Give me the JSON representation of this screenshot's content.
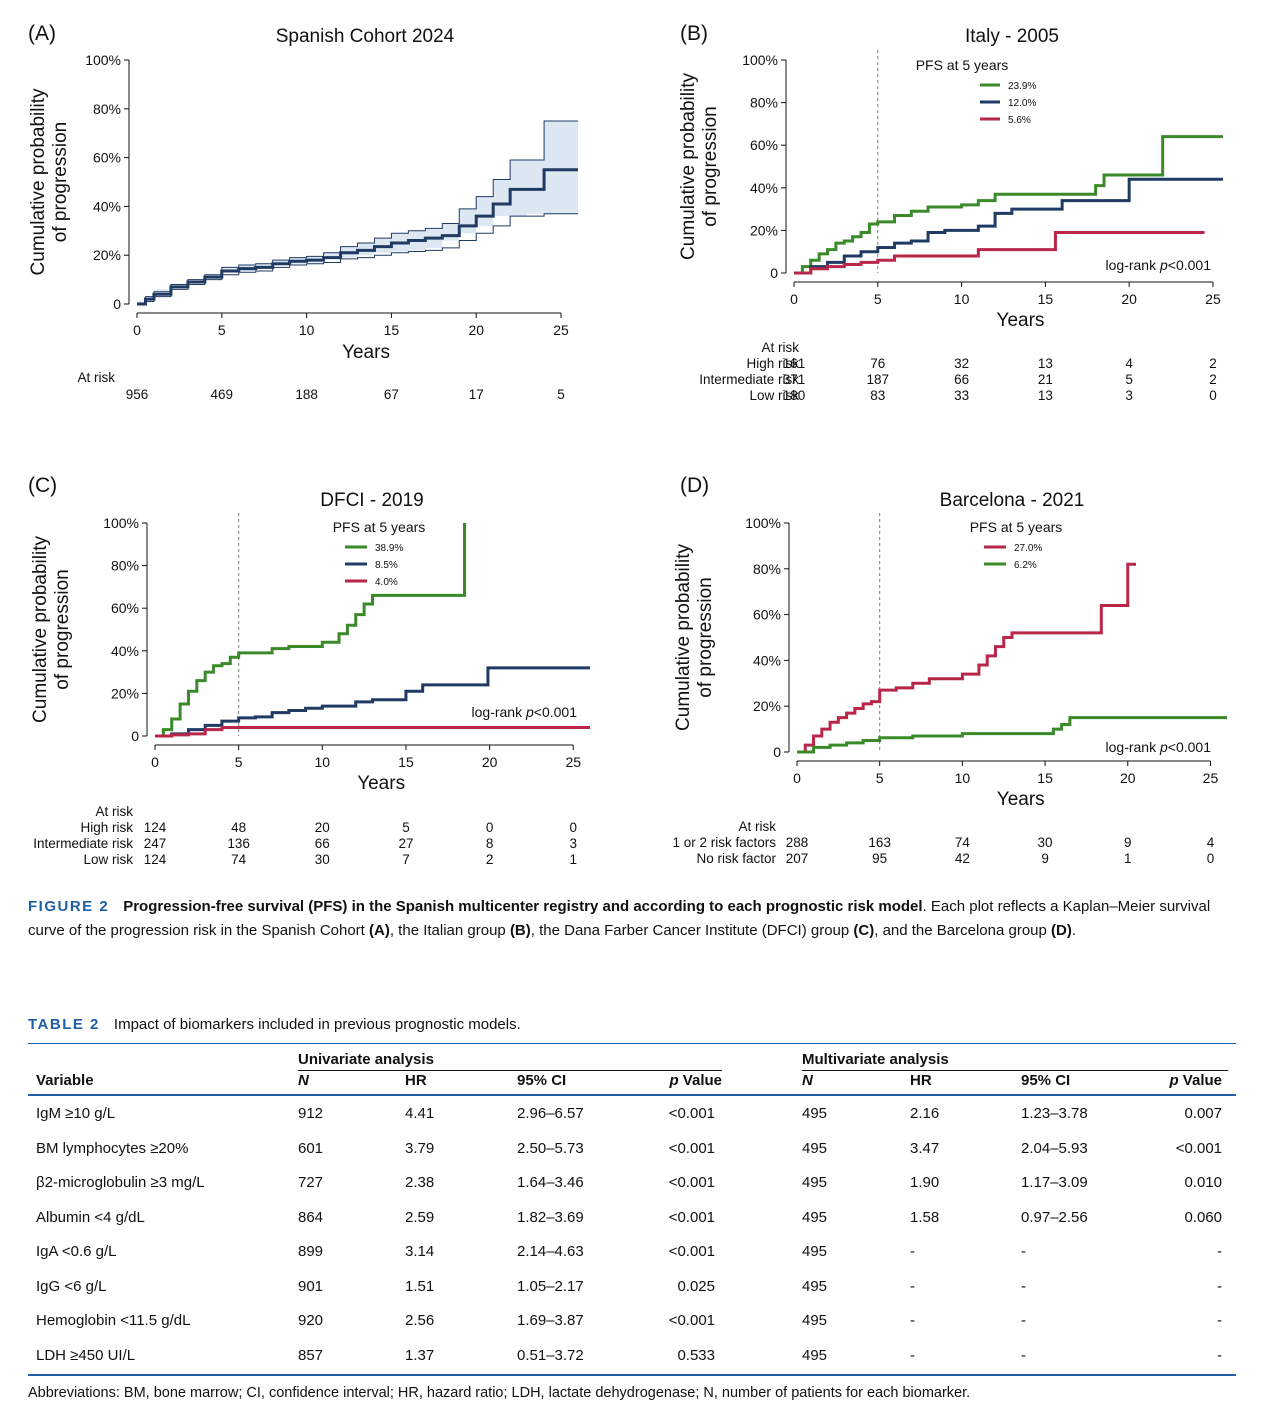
{
  "panels": [
    {
      "label": "(A)",
      "title": "Spanish Cohort 2024",
      "ylabel_lines": [
        "Cumulative probability",
        "of progression"
      ],
      "xlabel": "Years",
      "yticks": [
        "0",
        "20%",
        "40%",
        "60%",
        "80%",
        "100%"
      ],
      "xticks": [
        "0",
        "5",
        "10",
        "15",
        "20",
        "25"
      ],
      "at_risk_title": "At risk",
      "at_risk_rows": [
        {
          "label": "",
          "values": [
            "956",
            "469",
            "188",
            "67",
            "17",
            "5"
          ]
        }
      ]
    },
    {
      "label": "(B)",
      "title": "Italy - 2005",
      "ylabel_lines": [
        "Cumulative probability",
        "of progression"
      ],
      "xlabel": "Years",
      "yticks": [
        "0",
        "20%",
        "40%",
        "60%",
        "80%",
        "100%"
      ],
      "xticks": [
        "0",
        "5",
        "10",
        "15",
        "20",
        "25"
      ],
      "legend_title": "PFS at 5 years",
      "legend": [
        "23.9%",
        "12.0%",
        "5.6%"
      ],
      "logrank": "log-rank ",
      "logrank_p": "p",
      "logrank_val": "<0.001",
      "at_risk_title": "At risk",
      "at_risk_rows": [
        {
          "label": "High risk",
          "values": [
            "161",
            "76",
            "32",
            "13",
            "4",
            "2"
          ]
        },
        {
          "label": "Intermediate risk",
          "values": [
            "371",
            "187",
            "66",
            "21",
            "5",
            "2"
          ]
        },
        {
          "label": "Low risk",
          "values": [
            "180",
            "83",
            "33",
            "13",
            "3",
            "0"
          ]
        }
      ]
    },
    {
      "label": "(C)",
      "title": "DFCI - 2019",
      "ylabel_lines": [
        "Cumulative probability",
        "of progression"
      ],
      "xlabel": "Years",
      "yticks": [
        "0",
        "20%",
        "40%",
        "60%",
        "80%",
        "100%"
      ],
      "xticks": [
        "0",
        "5",
        "10",
        "15",
        "20",
        "25"
      ],
      "legend_title": "PFS at 5 years",
      "legend": [
        "38.9%",
        "8.5%",
        "4.0%"
      ],
      "logrank": "log-rank ",
      "logrank_p": "p",
      "logrank_val": "<0.001",
      "at_risk_title": "At risk",
      "at_risk_rows": [
        {
          "label": "High risk",
          "values": [
            "124",
            "48",
            "20",
            "5",
            "0",
            "0"
          ]
        },
        {
          "label": "Intermediate risk",
          "values": [
            "247",
            "136",
            "66",
            "27",
            "8",
            "3"
          ]
        },
        {
          "label": "Low risk",
          "values": [
            "124",
            "74",
            "30",
            "7",
            "2",
            "1"
          ]
        }
      ]
    },
    {
      "label": "(D)",
      "title": "Barcelona - 2021",
      "ylabel_lines": [
        "Cumulative probability",
        "of progression"
      ],
      "xlabel": "Years",
      "yticks": [
        "0",
        "20%",
        "40%",
        "60%",
        "80%",
        "100%"
      ],
      "xticks": [
        "0",
        "5",
        "10",
        "15",
        "20",
        "25"
      ],
      "legend_title": "PFS at 5 years",
      "legend": [
        "27.0%",
        "6.2%"
      ],
      "logrank": "log-rank ",
      "logrank_p": "p",
      "logrank_val": "<0.001",
      "at_risk_title": "At risk",
      "at_risk_rows": [
        {
          "label": "1 or 2 risk factors",
          "values": [
            "288",
            "163",
            "74",
            "30",
            "9",
            "4"
          ]
        },
        {
          "label": "No risk factor",
          "values": [
            "207",
            "95",
            "42",
            "9",
            "1",
            "0"
          ]
        }
      ]
    }
  ],
  "colors": {
    "green": "#3a8a2a",
    "navy": "#1f3a63",
    "red": "#b8264a",
    "band": "#dce7f2",
    "accent": "#1f5fa6"
  },
  "chart_data": [
    {
      "type": "line",
      "title": "Spanish Cohort 2024",
      "xlabel": "Years",
      "ylabel": "Cumulative probability of progression",
      "xlim": [
        0,
        26
      ],
      "ylim": [
        0,
        1
      ],
      "series": [
        {
          "x": [
            0,
            0.5,
            1,
            2,
            3,
            4,
            5,
            6,
            7,
            8,
            9,
            10,
            11,
            12,
            13,
            14,
            15,
            16,
            17,
            18,
            19,
            20,
            21,
            22,
            23,
            24,
            25,
            26
          ],
          "y": [
            0,
            0.02,
            0.04,
            0.07,
            0.09,
            0.11,
            0.135,
            0.145,
            0.15,
            0.165,
            0.175,
            0.18,
            0.19,
            0.21,
            0.22,
            0.235,
            0.25,
            0.26,
            0.27,
            0.28,
            0.32,
            0.36,
            0.41,
            0.47,
            0.47,
            0.55,
            0.55,
            0.55
          ],
          "lower": [
            0,
            0.01,
            0.03,
            0.06,
            0.08,
            0.1,
            0.12,
            0.13,
            0.135,
            0.15,
            0.16,
            0.165,
            0.17,
            0.185,
            0.19,
            0.2,
            0.21,
            0.215,
            0.22,
            0.23,
            0.26,
            0.29,
            0.32,
            0.36,
            0.36,
            0.37,
            0.37,
            0.37
          ],
          "upper": [
            0,
            0.03,
            0.05,
            0.08,
            0.1,
            0.12,
            0.15,
            0.16,
            0.165,
            0.18,
            0.19,
            0.195,
            0.21,
            0.235,
            0.25,
            0.27,
            0.29,
            0.3,
            0.31,
            0.33,
            0.39,
            0.44,
            0.51,
            0.59,
            0.59,
            0.75,
            0.75,
            0.75
          ]
        }
      ]
    },
    {
      "type": "line",
      "title": "Italy - 2005",
      "xlabel": "Years",
      "ylabel": "Cumulative probability of progression",
      "xlim": [
        0,
        25
      ],
      "ylim": [
        0,
        1
      ],
      "vline": 5,
      "series": [
        {
          "legend": "23.9%",
          "color": "green",
          "x": [
            0,
            0.5,
            1,
            1.5,
            2,
            2.5,
            3,
            3.5,
            4,
            4.5,
            5,
            6,
            7,
            8,
            9,
            10,
            11,
            12,
            13,
            14,
            15,
            16,
            17,
            18,
            18.5,
            20,
            21,
            22,
            23,
            24,
            25.6
          ],
          "y": [
            0,
            0.03,
            0.06,
            0.09,
            0.11,
            0.14,
            0.15,
            0.17,
            0.19,
            0.23,
            0.24,
            0.27,
            0.29,
            0.31,
            0.31,
            0.32,
            0.34,
            0.37,
            0.37,
            0.37,
            0.37,
            0.37,
            0.37,
            0.41,
            0.46,
            0.46,
            0.46,
            0.64,
            0.64,
            0.64,
            0.64
          ]
        },
        {
          "legend": "12.0%",
          "color": "navy",
          "x": [
            0,
            1,
            2,
            3,
            4,
            5,
            6,
            7,
            8,
            9,
            10,
            11,
            12,
            13,
            14,
            15,
            16,
            17,
            18,
            19,
            20,
            21,
            22,
            23,
            24,
            25.6
          ],
          "y": [
            0,
            0.03,
            0.05,
            0.08,
            0.1,
            0.12,
            0.14,
            0.15,
            0.19,
            0.2,
            0.2,
            0.22,
            0.28,
            0.3,
            0.3,
            0.3,
            0.34,
            0.34,
            0.34,
            0.34,
            0.44,
            0.44,
            0.44,
            0.44,
            0.44,
            0.44
          ]
        },
        {
          "legend": "5.6%",
          "color": "red",
          "x": [
            0,
            1,
            2,
            3,
            4,
            5,
            6,
            7,
            8,
            9,
            10,
            11,
            12,
            13,
            14,
            15,
            15.6,
            17,
            20,
            22,
            24.5
          ],
          "y": [
            0,
            0.02,
            0.03,
            0.04,
            0.05,
            0.06,
            0.08,
            0.08,
            0.08,
            0.08,
            0.08,
            0.11,
            0.11,
            0.11,
            0.11,
            0.11,
            0.19,
            0.19,
            0.19,
            0.19,
            0.19
          ]
        }
      ]
    },
    {
      "type": "line",
      "title": "DFCI - 2019",
      "xlabel": "Years",
      "ylabel": "Cumulative probability of progression",
      "xlim": [
        0,
        26
      ],
      "ylim": [
        0,
        1
      ],
      "vline": 5,
      "series": [
        {
          "legend": "38.9%",
          "color": "green",
          "x": [
            0,
            0.5,
            1,
            1.5,
            2,
            2.5,
            3,
            3.5,
            4,
            4.5,
            5,
            6,
            7,
            8,
            9,
            10,
            11,
            11.5,
            12,
            12.5,
            13,
            14,
            15,
            16,
            17,
            18,
            18.5,
            18.5
          ],
          "y": [
            0,
            0.03,
            0.08,
            0.15,
            0.21,
            0.26,
            0.3,
            0.33,
            0.34,
            0.37,
            0.39,
            0.39,
            0.41,
            0.42,
            0.42,
            0.44,
            0.48,
            0.52,
            0.57,
            0.62,
            0.66,
            0.66,
            0.66,
            0.66,
            0.66,
            0.66,
            0.66,
            1.0
          ]
        },
        {
          "legend": "8.5%",
          "color": "navy",
          "x": [
            0,
            1,
            2,
            3,
            4,
            5,
            6,
            7,
            8,
            9,
            10,
            11,
            12,
            13,
            14,
            15,
            16,
            17,
            18,
            19,
            19.9,
            21,
            23,
            26
          ],
          "y": [
            0,
            0.01,
            0.03,
            0.05,
            0.07,
            0.085,
            0.09,
            0.11,
            0.12,
            0.13,
            0.14,
            0.14,
            0.16,
            0.17,
            0.17,
            0.21,
            0.24,
            0.24,
            0.24,
            0.24,
            0.32,
            0.32,
            0.32,
            0.32
          ]
        },
        {
          "legend": "4.0%",
          "color": "red",
          "x": [
            0,
            1,
            2,
            3,
            4,
            5,
            10,
            15,
            20,
            26
          ],
          "y": [
            0,
            0.005,
            0.01,
            0.03,
            0.04,
            0.04,
            0.04,
            0.04,
            0.04,
            0.04
          ]
        }
      ]
    },
    {
      "type": "line",
      "title": "Barcelona - 2021",
      "xlabel": "Years",
      "ylabel": "Cumulative probability of progression",
      "xlim": [
        0,
        26
      ],
      "ylim": [
        0,
        1
      ],
      "vline": 5,
      "series": [
        {
          "legend": "27.0%",
          "color": "red",
          "x": [
            0,
            0.5,
            1,
            1.5,
            2,
            2.5,
            3,
            3.5,
            4,
            4.5,
            5,
            6,
            7,
            8,
            9,
            10,
            11,
            11.5,
            12,
            12.5,
            13,
            15,
            17,
            18.4,
            19,
            20,
            20.5
          ],
          "y": [
            0,
            0.03,
            0.07,
            0.1,
            0.13,
            0.15,
            0.17,
            0.19,
            0.21,
            0.22,
            0.27,
            0.28,
            0.3,
            0.32,
            0.32,
            0.34,
            0.38,
            0.42,
            0.46,
            0.5,
            0.52,
            0.52,
            0.52,
            0.64,
            0.64,
            0.82,
            0.82
          ]
        },
        {
          "legend": "6.2%",
          "color": "green",
          "x": [
            0,
            1,
            2,
            3,
            4,
            5,
            7,
            10,
            12,
            15,
            15.5,
            16,
            16.5,
            20,
            24,
            26
          ],
          "y": [
            0,
            0.02,
            0.03,
            0.04,
            0.05,
            0.062,
            0.07,
            0.08,
            0.08,
            0.08,
            0.1,
            0.12,
            0.15,
            0.15,
            0.15,
            0.15
          ]
        }
      ]
    }
  ],
  "caption": {
    "figure_label": "FIGURE 2",
    "bold_part": "Progression-free survival (PFS) in the Spanish multicenter registry and according to each prognostic risk model",
    "rest_1": ". Each plot reflects a Kaplan–Meier survival curve of the progression risk in the Spanish Cohort ",
    "A": "(A)",
    "rest_2": ", the Italian group ",
    "B": "(B)",
    "rest_3": ", the Dana Farber Cancer Institute (DFCI) group ",
    "C": "(C)",
    "rest_4": ", and the Barcelona group ",
    "D": "(D)",
    "rest_5": "."
  },
  "table": {
    "label": "TABLE 2",
    "title": "Impact of biomarkers included in previous prognostic models.",
    "group_uni": "Univariate analysis",
    "group_multi": "Multivariate analysis",
    "headers": [
      "Variable",
      "N",
      "HR",
      "95% CI",
      "p",
      " Value",
      "N",
      "HR",
      "95% CI",
      "p",
      " Value"
    ],
    "rows": [
      [
        "IgM ≥10 g/L",
        "912",
        "4.41",
        "2.96–6.57",
        "<0.001",
        "495",
        "2.16",
        "1.23–3.78",
        "0.007"
      ],
      [
        "BM lymphocytes ≥20%",
        "601",
        "3.79",
        "2.50–5.73",
        "<0.001",
        "495",
        "3.47",
        "2.04–5.93",
        "<0.001"
      ],
      [
        "β2-microglobulin ≥3 mg/L",
        "727",
        "2.38",
        "1.64–3.46",
        "<0.001",
        "495",
        "1.90",
        "1.17–3.09",
        "0.010"
      ],
      [
        "Albumin <4 g/dL",
        "864",
        "2.59",
        "1.82–3.69",
        "<0.001",
        "495",
        "1.58",
        "0.97–2.56",
        "0.060"
      ],
      [
        "IgA <0.6 g/L",
        "899",
        "3.14",
        "2.14–4.63",
        "<0.001",
        "495",
        "-",
        "-",
        "-"
      ],
      [
        "IgG <6 g/L",
        "901",
        "1.51",
        "1.05–2.17",
        "0.025",
        "495",
        "-",
        "-",
        "-"
      ],
      [
        "Hemoglobin <11.5 g/dL",
        "920",
        "2.56",
        "1.69–3.87",
        "<0.001",
        "495",
        "-",
        "-",
        "-"
      ],
      [
        "LDH ≥450 UI/L",
        "857",
        "1.37",
        "0.51–3.72",
        "0.533",
        "495",
        "-",
        "-",
        "-"
      ]
    ],
    "abbreviations": "Abbreviations: BM, bone marrow; CI, confidence interval; HR, hazard ratio; LDH, lactate dehydrogenase; N, number of patients for each biomarker."
  }
}
